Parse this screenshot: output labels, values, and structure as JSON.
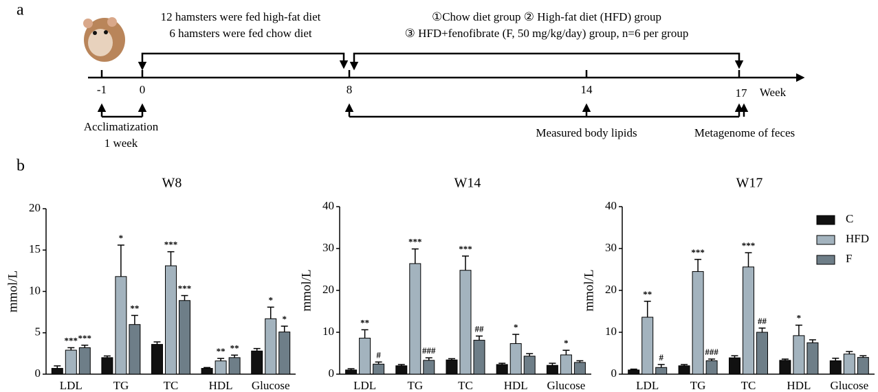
{
  "panel_a": "a",
  "panel_b": "b",
  "timeline": {
    "left_text": [
      "12 hamsters were fed high-fat diet",
      "6 hamsters were fed chow diet"
    ],
    "right_text": [
      "①Chow diet group ② High-fat diet (HFD) group",
      "③ HFD+fenofibrate (F, 50 mg/kg/day) group, n=6 per group"
    ],
    "ticks": [
      "-1",
      "0",
      "8",
      "14",
      "17"
    ],
    "unit": "Week",
    "acclimatization": [
      "Acclimatization",
      "1 week"
    ],
    "lipids": "Measured body lipids",
    "feces": "Metagenome of feces"
  },
  "chart_data": [
    {
      "type": "bar",
      "title": "W8",
      "ylabel": "mmol/L",
      "categories": [
        "LDL",
        "TG",
        "TC",
        "HDL",
        "Glucose"
      ],
      "ylim": [
        0,
        20
      ],
      "yticks": [
        0,
        5,
        10,
        15,
        20
      ],
      "series": [
        {
          "name": "C",
          "color": "#111111",
          "values": [
            0.7,
            2.0,
            3.6,
            0.7,
            2.8
          ],
          "errors": [
            0.3,
            0.2,
            0.3,
            0.1,
            0.3
          ],
          "annotations": [
            null,
            null,
            null,
            null,
            null
          ]
        },
        {
          "name": "HFD",
          "color": "#a3b3be",
          "values": [
            2.9,
            11.8,
            13.1,
            1.6,
            6.7
          ],
          "errors": [
            0.3,
            3.8,
            1.7,
            0.3,
            1.4
          ],
          "annotations": [
            "***",
            "*",
            "***",
            "**",
            "*"
          ]
        },
        {
          "name": "F",
          "color": "#6e7e88",
          "values": [
            3.2,
            6.0,
            8.9,
            2.0,
            5.1
          ],
          "errors": [
            0.3,
            1.1,
            0.6,
            0.3,
            0.7
          ],
          "annotations": [
            "***",
            "**",
            "***",
            "**",
            "*"
          ]
        }
      ]
    },
    {
      "type": "bar",
      "title": "W14",
      "ylabel": "mmol/L",
      "categories": [
        "LDL",
        "TG",
        "TC",
        "HDL",
        "Glucose"
      ],
      "ylim": [
        0,
        40
      ],
      "yticks": [
        0,
        10,
        20,
        30,
        40
      ],
      "series": [
        {
          "name": "C",
          "color": "#111111",
          "values": [
            1.0,
            2.0,
            3.4,
            2.3,
            2.1
          ],
          "errors": [
            0.3,
            0.3,
            0.3,
            0.3,
            0.5
          ],
          "annotations": [
            null,
            null,
            null,
            null,
            null
          ]
        },
        {
          "name": "HFD",
          "color": "#a3b3be",
          "values": [
            8.6,
            26.4,
            24.8,
            7.3,
            4.6
          ],
          "errors": [
            2.0,
            3.5,
            3.4,
            2.2,
            1.1
          ],
          "annotations": [
            "**",
            "***",
            "***",
            "*",
            "*"
          ]
        },
        {
          "name": "F",
          "color": "#6e7e88",
          "values": [
            2.4,
            3.3,
            8.1,
            4.3,
            2.8
          ],
          "errors": [
            0.5,
            0.6,
            1.0,
            0.6,
            0.4
          ],
          "annotations": [
            "#",
            "###",
            "##",
            null,
            null
          ]
        }
      ]
    },
    {
      "type": "bar",
      "title": "W17",
      "ylabel": "mmol/L",
      "categories": [
        "LDL",
        "TG",
        "TC",
        "HDL",
        "Glucose"
      ],
      "ylim": [
        0,
        40
      ],
      "yticks": [
        0,
        10,
        20,
        30,
        40
      ],
      "legend": "top-right",
      "series": [
        {
          "name": "C",
          "color": "#111111",
          "values": [
            1.0,
            2.0,
            3.9,
            3.3,
            3.2
          ],
          "errors": [
            0.2,
            0.3,
            0.5,
            0.3,
            0.6
          ],
          "annotations": [
            null,
            null,
            null,
            null,
            null
          ]
        },
        {
          "name": "HFD",
          "color": "#a3b3be",
          "values": [
            13.6,
            24.5,
            25.6,
            9.2,
            4.8
          ],
          "errors": [
            3.8,
            2.9,
            3.4,
            2.5,
            0.6
          ],
          "annotations": [
            "**",
            "***",
            "***",
            "*",
            null
          ]
        },
        {
          "name": "F",
          "color": "#6e7e88",
          "values": [
            1.6,
            3.2,
            10.0,
            7.5,
            4.0
          ],
          "errors": [
            0.7,
            0.4,
            1.0,
            0.7,
            0.4
          ],
          "annotations": [
            "#",
            "###",
            "##",
            null,
            null
          ]
        }
      ]
    }
  ]
}
